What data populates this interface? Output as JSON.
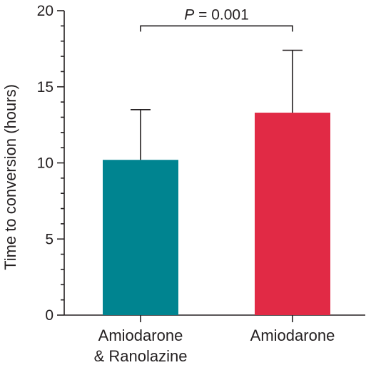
{
  "chart_data": {
    "type": "bar",
    "ylabel": "Time to conversion (hours)",
    "xlabel": "",
    "ylim": [
      0,
      20
    ],
    "major_ticks": [
      0,
      5,
      10,
      15,
      20
    ],
    "minor_tick_step": 1,
    "categories": [
      {
        "lines": [
          "Amiodarone",
          "& Ranolazine"
        ]
      },
      {
        "lines": [
          "Amiodarone"
        ]
      }
    ],
    "values": [
      10.2,
      13.3
    ],
    "errors_upper": [
      3.3,
      4.1
    ],
    "colors": [
      "#008490",
      "#e12a45"
    ],
    "significance": {
      "p_symbol": "P",
      "p_text": " = 0.001",
      "between": [
        0,
        1
      ],
      "y": 19.0
    }
  }
}
